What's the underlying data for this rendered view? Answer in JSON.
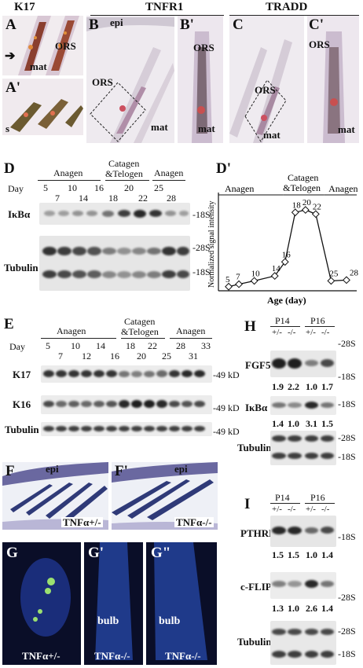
{
  "headers": {
    "k17": "K17",
    "tnfr1": "TNFR1",
    "tradd": "TRADD"
  },
  "panelA": {
    "label": "A",
    "ors": "ORS",
    "mat": "mat"
  },
  "panelA2": {
    "label": "A'",
    "s": "s"
  },
  "panelB": {
    "label": "B",
    "epi": "epi",
    "ors": "ORS",
    "mat": "mat"
  },
  "panelB2": {
    "label": "B'",
    "ors": "ORS",
    "mat": "mat"
  },
  "panelC": {
    "label": "C",
    "ors": "ORS",
    "mat": "mat"
  },
  "panelC2": {
    "label": "C'",
    "ors": "ORS",
    "mat": "mat"
  },
  "panelD": {
    "label": "D",
    "groups": [
      "Anagen",
      "Catagen",
      "&Telogen",
      "Anagen"
    ],
    "day_label": "Day",
    "days_top": [
      "5",
      "10",
      "16",
      "20",
      "25"
    ],
    "days_bottom": [
      "7",
      "14",
      "18",
      "22",
      "28"
    ],
    "row1": "IκBα",
    "row2": "Tubulin",
    "m18": "-18S",
    "m28": "-28S",
    "m18b": "-18S"
  },
  "chart_data": {
    "type": "line",
    "title": "",
    "xlabel": "Age (day)",
    "ylabel": "Normalized signal intensity",
    "x": [
      5,
      7,
      10,
      14,
      16,
      18,
      20,
      22,
      25,
      28
    ],
    "y": [
      0.05,
      0.08,
      0.12,
      0.18,
      0.35,
      0.95,
      0.98,
      0.93,
      0.12,
      0.13
    ],
    "point_labels": [
      "5",
      "7",
      "10",
      "14",
      "16",
      "18",
      "20",
      "22",
      "25",
      "28"
    ],
    "phase_labels": [
      "Anagen",
      "Catagen",
      "&Telogen",
      "Anagen"
    ],
    "panel_label": "D'"
  },
  "panelE": {
    "label": "E",
    "groups": [
      "Anagen",
      "Catagen",
      "&Telogen",
      "Anagen"
    ],
    "day_label": "Day",
    "days_top": [
      "5",
      "10",
      "14",
      "18",
      "22",
      "28",
      "33"
    ],
    "days_bottom": [
      "7",
      "12",
      "16",
      "20",
      "25",
      "31"
    ],
    "rows": [
      "K17",
      "K16",
      "Tubulin"
    ],
    "marker": "-49 kD"
  },
  "panelF": {
    "label": "F",
    "epi": "epi",
    "genotype": "TNFα+/-"
  },
  "panelF2": {
    "label": "F'",
    "epi": "epi",
    "genotype": "TNFα-/-"
  },
  "panelG": {
    "label": "G",
    "genotype": "TNFα+/-"
  },
  "panelG2": {
    "label": "G'",
    "bulb": "bulb",
    "genotype": "TNFα-/-"
  },
  "panelG3": {
    "label": "G\"",
    "bulb": "bulb",
    "genotype": "TNFα-/-"
  },
  "panelH": {
    "label": "H",
    "p14": "P14",
    "p16": "P16",
    "genotypes": [
      "+/-",
      "-/-",
      "+/-",
      "-/-"
    ],
    "fgf5": "FGF5",
    "fgf5_vals": [
      "1.9",
      "2.2",
      "1.0",
      "1.7"
    ],
    "ikba": "IκBα",
    "ikba_vals": [
      "1.4",
      "1.0",
      "3.1",
      "1.5"
    ],
    "tubulin": "Tubulin",
    "m28": "-28S",
    "m18": "-18S",
    "m18b": "-18S",
    "m28b": "-28S",
    "m18c": "-18S"
  },
  "panelI": {
    "label": "I",
    "p14": "P14",
    "p16": "P16",
    "genotypes": [
      "+/-",
      "-/-",
      "+/-",
      "-/-"
    ],
    "pthrp": "PTHRP",
    "pthrp_vals": [
      "1.5",
      "1.5",
      "1.0",
      "1.4"
    ],
    "cflip": "c-FLIP",
    "cflip_vals": [
      "1.3",
      "1.0",
      "2.6",
      "1.4"
    ],
    "tubulin": "Tubulin",
    "m18": "-18S",
    "m28": "-28S",
    "m28b": "-28S",
    "m18b": "-18S"
  }
}
